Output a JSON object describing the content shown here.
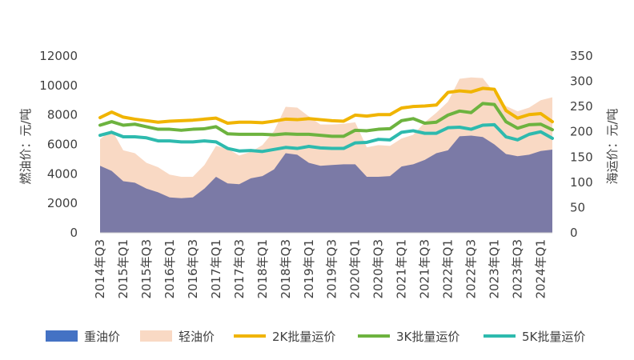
{
  "chart_data": {
    "type": "area",
    "title": "",
    "categories": [
      "2014年Q3",
      "2014年Q4",
      "2015年Q1",
      "2015年Q2",
      "2015年Q3",
      "2015年Q4",
      "2016年Q1",
      "2016年Q2",
      "2016年Q3",
      "2016年Q4",
      "2017年Q1",
      "2017年Q2",
      "2017年Q3",
      "2017年Q4",
      "2018年Q1",
      "2018年Q2",
      "2018年Q3",
      "2018年Q4",
      "2019年Q1",
      "2019年Q2",
      "2019年Q3",
      "2019年Q4",
      "2020年Q1",
      "2020年Q2",
      "2020年Q3",
      "2020年Q4",
      "2021年Q1",
      "2021年Q2",
      "2021年Q3",
      "2021年Q4",
      "2022年Q1",
      "2022年Q2",
      "2022年Q3",
      "2022年Q4",
      "2023年Q1",
      "2023年Q2",
      "2023年Q3",
      "2023年Q4",
      "2024年Q1",
      "2024年Q2"
    ],
    "x_tick_labels": [
      "2014年Q3",
      "2015年Q1",
      "2015年Q3",
      "2016年Q1",
      "2016年Q3",
      "2017年Q1",
      "2017年Q3",
      "2018年Q1",
      "2018年Q3",
      "2019年Q1",
      "2019年Q3",
      "2020年Q1",
      "2020年Q3",
      "2021年Q1",
      "2021年Q3",
      "2022年Q1",
      "2022年Q3",
      "2023年Q1",
      "2023年Q3",
      "2024年Q1"
    ],
    "y_left": {
      "label": "燃油价：元/吨",
      "ylim": [
        0,
        12000
      ],
      "ticks": [
        0,
        2000,
        4000,
        6000,
        8000,
        10000,
        12000
      ]
    },
    "y_right": {
      "label": "海运价：元/吨",
      "ylim": [
        0,
        350
      ],
      "ticks": [
        0,
        50,
        100,
        150,
        200,
        250,
        300,
        350
      ]
    },
    "grid": false,
    "legend_position": "bottom",
    "series": [
      {
        "name": "重油价",
        "kind": "area",
        "axis": "left",
        "color": "#7b7aa6",
        "values": [
          4550,
          4200,
          3500,
          3400,
          3000,
          2750,
          2400,
          2350,
          2400,
          3000,
          3800,
          3350,
          3300,
          3700,
          3850,
          4300,
          5400,
          5300,
          4750,
          4550,
          4600,
          4650,
          4650,
          3800,
          3800,
          3850,
          4500,
          4650,
          4950,
          5400,
          5600,
          6550,
          6600,
          6500,
          6000,
          5350,
          5200,
          5300,
          5550,
          5650
        ]
      },
      {
        "name": "轻油价",
        "kind": "area",
        "axis": "left",
        "color": "#f9d9c4",
        "values": [
          6350,
          7000,
          5600,
          5400,
          4750,
          4450,
          3950,
          3800,
          3800,
          4600,
          5900,
          5700,
          5250,
          5500,
          5950,
          6900,
          8550,
          8500,
          7900,
          7350,
          7350,
          7400,
          7500,
          5800,
          5950,
          5900,
          6400,
          6650,
          7500,
          8150,
          8900,
          10450,
          10550,
          10500,
          9500,
          8600,
          8250,
          8500,
          9000,
          9200
        ]
      },
      {
        "name": "2K批量运价",
        "kind": "line",
        "axis": "right",
        "color": "#f0b400",
        "values": [
          228,
          239,
          229,
          225,
          222,
          219,
          221,
          222,
          223,
          225,
          227,
          217,
          219,
          219,
          218,
          221,
          225,
          224,
          226,
          224,
          222,
          221,
          233,
          231,
          234,
          234,
          247,
          250,
          251,
          253,
          278,
          281,
          279,
          286,
          284,
          242,
          227,
          234,
          236,
          220
        ]
      },
      {
        "name": "3K批量运价",
        "kind": "line",
        "axis": "right",
        "color": "#6db33f",
        "values": [
          213,
          220,
          213,
          215,
          210,
          205,
          205,
          203,
          205,
          206,
          210,
          196,
          195,
          195,
          195,
          194,
          196,
          195,
          195,
          193,
          191,
          191,
          203,
          202,
          205,
          206,
          222,
          226,
          217,
          219,
          233,
          241,
          238,
          256,
          254,
          220,
          207,
          214,
          215,
          204
        ]
      },
      {
        "name": "5K批量运价",
        "kind": "line",
        "axis": "right",
        "color": "#2ebaae",
        "values": [
          193,
          199,
          190,
          190,
          188,
          182,
          182,
          180,
          180,
          182,
          180,
          167,
          162,
          163,
          161,
          165,
          169,
          167,
          171,
          168,
          167,
          167,
          178,
          179,
          185,
          184,
          199,
          202,
          197,
          197,
          208,
          209,
          205,
          213,
          214,
          190,
          184,
          195,
          200,
          187
        ]
      }
    ]
  }
}
